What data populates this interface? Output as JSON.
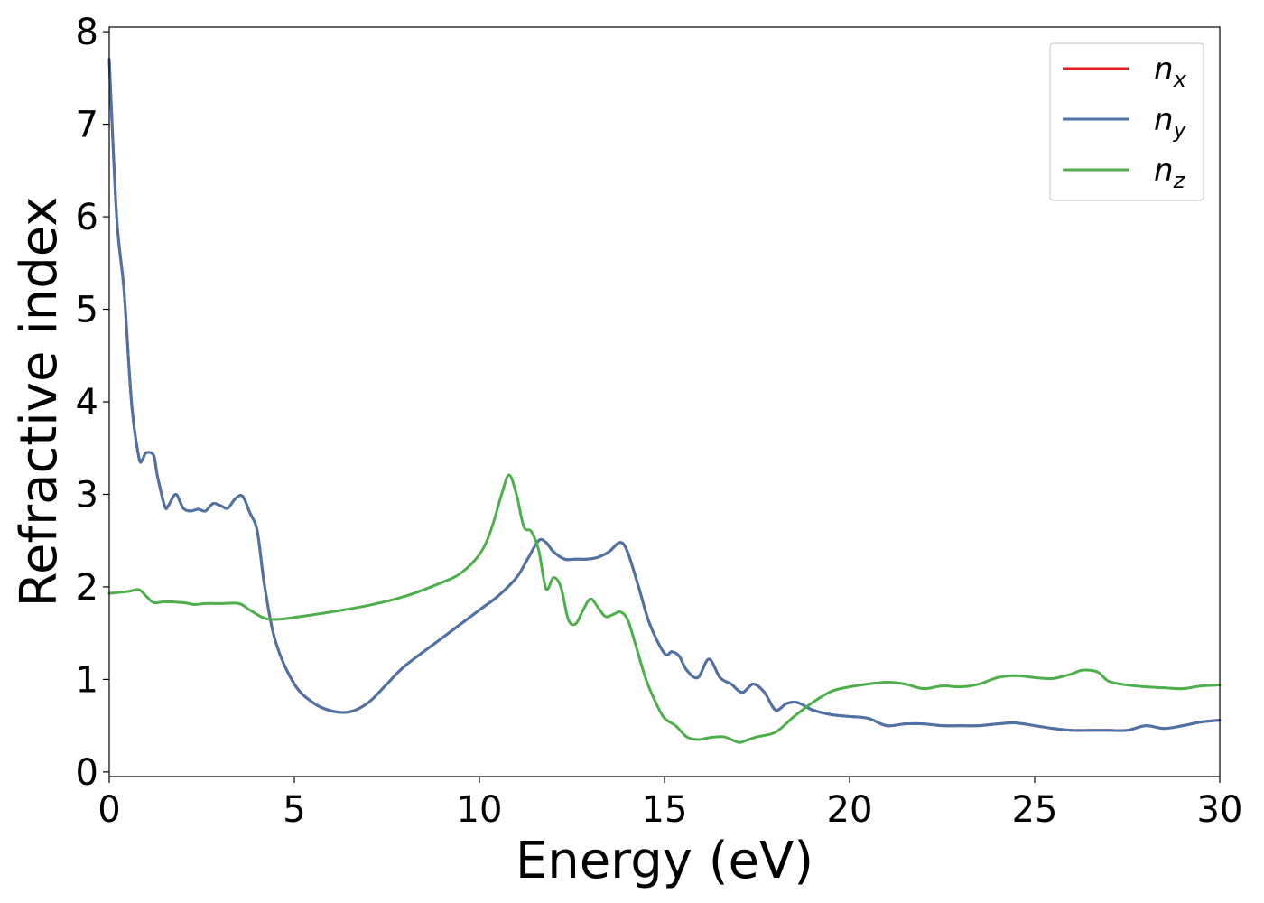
{
  "chart_data": {
    "type": "line",
    "xlabel": "Energy (eV)",
    "ylabel": "Refractive index",
    "xlim": [
      0,
      30
    ],
    "ylim": [
      -0.05,
      8.05
    ],
    "xticks": [
      0,
      5,
      10,
      15,
      20,
      25,
      30
    ],
    "yticks": [
      0,
      1,
      2,
      3,
      4,
      5,
      6,
      7,
      8
    ],
    "grid": false,
    "legend_position": "top-right",
    "series": [
      {
        "name": "n",
        "sub": "x",
        "color": "#e41a1c",
        "x": [
          0,
          0.2,
          0.4,
          0.6,
          0.8,
          0.9,
          1.0,
          1.2,
          1.3,
          1.5,
          1.6,
          1.8,
          2.0,
          2.2,
          2.4,
          2.6,
          2.8,
          3.0,
          3.2,
          3.4,
          3.6,
          3.8,
          4.0,
          4.2,
          4.5,
          5.0,
          5.5,
          6.0,
          6.5,
          7.0,
          7.5,
          8.0,
          9.0,
          10.0,
          10.5,
          11.0,
          11.3,
          11.6,
          11.8,
          12.0,
          12.3,
          12.6,
          12.9,
          13.2,
          13.5,
          13.8,
          14.0,
          14.3,
          14.6,
          15.0,
          15.2,
          15.4,
          15.6,
          15.9,
          16.2,
          16.5,
          16.8,
          17.1,
          17.4,
          17.7,
          18.0,
          18.3,
          18.6,
          19.0,
          19.5,
          20.0,
          20.5,
          21.0,
          21.5,
          22.0,
          22.5,
          23.0,
          23.5,
          24.0,
          24.5,
          25.0,
          25.5,
          26.0,
          26.5,
          27.0,
          27.5,
          28.0,
          28.5,
          29.0,
          29.5,
          30.0
        ],
        "y": [
          7.7,
          6.0,
          5.2,
          4.0,
          3.4,
          3.38,
          3.45,
          3.42,
          3.2,
          2.87,
          2.88,
          3.0,
          2.85,
          2.82,
          2.84,
          2.82,
          2.9,
          2.88,
          2.85,
          2.95,
          2.98,
          2.8,
          2.6,
          2.0,
          1.4,
          0.95,
          0.75,
          0.66,
          0.65,
          0.75,
          0.95,
          1.15,
          1.45,
          1.75,
          1.9,
          2.1,
          2.3,
          2.5,
          2.48,
          2.38,
          2.3,
          2.3,
          2.3,
          2.32,
          2.38,
          2.48,
          2.38,
          2.0,
          1.6,
          1.28,
          1.3,
          1.25,
          1.1,
          1.02,
          1.22,
          1.02,
          0.95,
          0.86,
          0.95,
          0.86,
          0.67,
          0.74,
          0.75,
          0.67,
          0.62,
          0.6,
          0.58,
          0.5,
          0.52,
          0.52,
          0.5,
          0.5,
          0.5,
          0.52,
          0.53,
          0.5,
          0.47,
          0.45,
          0.45,
          0.45,
          0.45,
          0.5,
          0.47,
          0.5,
          0.54,
          0.56
        ]
      },
      {
        "name": "n",
        "sub": "y",
        "color": "#4a74a8",
        "x": [
          0,
          0.2,
          0.4,
          0.6,
          0.8,
          0.9,
          1.0,
          1.2,
          1.3,
          1.5,
          1.6,
          1.8,
          2.0,
          2.2,
          2.4,
          2.6,
          2.8,
          3.0,
          3.2,
          3.4,
          3.6,
          3.8,
          4.0,
          4.2,
          4.5,
          5.0,
          5.5,
          6.0,
          6.5,
          7.0,
          7.5,
          8.0,
          9.0,
          10.0,
          10.5,
          11.0,
          11.3,
          11.6,
          11.8,
          12.0,
          12.3,
          12.6,
          12.9,
          13.2,
          13.5,
          13.8,
          14.0,
          14.3,
          14.6,
          15.0,
          15.2,
          15.4,
          15.6,
          15.9,
          16.2,
          16.5,
          16.8,
          17.1,
          17.4,
          17.7,
          18.0,
          18.3,
          18.6,
          19.0,
          19.5,
          20.0,
          20.5,
          21.0,
          21.5,
          22.0,
          22.5,
          23.0,
          23.5,
          24.0,
          24.5,
          25.0,
          25.5,
          26.0,
          26.5,
          27.0,
          27.5,
          28.0,
          28.5,
          29.0,
          29.5,
          30.0
        ],
        "y": [
          7.7,
          6.0,
          5.2,
          4.0,
          3.4,
          3.38,
          3.45,
          3.42,
          3.2,
          2.87,
          2.88,
          3.0,
          2.85,
          2.82,
          2.84,
          2.82,
          2.9,
          2.88,
          2.85,
          2.95,
          2.98,
          2.8,
          2.6,
          2.0,
          1.4,
          0.95,
          0.75,
          0.66,
          0.65,
          0.75,
          0.95,
          1.15,
          1.45,
          1.75,
          1.9,
          2.1,
          2.3,
          2.5,
          2.48,
          2.38,
          2.3,
          2.3,
          2.3,
          2.32,
          2.38,
          2.48,
          2.38,
          2.0,
          1.6,
          1.28,
          1.3,
          1.25,
          1.1,
          1.02,
          1.22,
          1.02,
          0.95,
          0.86,
          0.95,
          0.86,
          0.67,
          0.74,
          0.75,
          0.67,
          0.62,
          0.6,
          0.58,
          0.5,
          0.52,
          0.52,
          0.5,
          0.5,
          0.5,
          0.52,
          0.53,
          0.5,
          0.47,
          0.45,
          0.45,
          0.45,
          0.45,
          0.5,
          0.47,
          0.5,
          0.54,
          0.56
        ]
      },
      {
        "name": "n",
        "sub": "z",
        "color": "#4daf4a",
        "x": [
          0,
          0.5,
          0.8,
          1.0,
          1.2,
          1.5,
          2.0,
          2.3,
          2.6,
          3.0,
          3.5,
          3.8,
          4.2,
          4.6,
          5.0,
          6.0,
          7.0,
          8.0,
          9.0,
          9.5,
          10.0,
          10.3,
          10.6,
          10.8,
          11.0,
          11.2,
          11.4,
          11.6,
          11.8,
          12.0,
          12.2,
          12.4,
          12.6,
          12.8,
          13.0,
          13.2,
          13.4,
          13.6,
          13.8,
          14.0,
          14.2,
          14.5,
          14.8,
          15.0,
          15.3,
          15.6,
          15.9,
          16.2,
          16.6,
          17.0,
          17.2,
          17.5,
          18.0,
          18.5,
          19.0,
          19.5,
          20.0,
          20.5,
          21.0,
          21.5,
          22.0,
          22.5,
          23.0,
          23.5,
          24.0,
          24.5,
          25.0,
          25.5,
          26.0,
          26.3,
          26.7,
          27.0,
          27.5,
          28.0,
          28.5,
          29.0,
          29.5,
          30.0
        ],
        "y": [
          1.93,
          1.95,
          1.97,
          1.9,
          1.83,
          1.84,
          1.83,
          1.81,
          1.82,
          1.82,
          1.82,
          1.75,
          1.66,
          1.65,
          1.67,
          1.73,
          1.8,
          1.9,
          2.05,
          2.15,
          2.35,
          2.6,
          3.0,
          3.21,
          3.0,
          2.65,
          2.6,
          2.4,
          1.98,
          2.1,
          2.0,
          1.65,
          1.6,
          1.75,
          1.87,
          1.78,
          1.68,
          1.7,
          1.73,
          1.65,
          1.4,
          1.0,
          0.72,
          0.58,
          0.5,
          0.38,
          0.35,
          0.37,
          0.38,
          0.32,
          0.34,
          0.38,
          0.43,
          0.6,
          0.75,
          0.87,
          0.92,
          0.95,
          0.97,
          0.95,
          0.9,
          0.93,
          0.92,
          0.95,
          1.02,
          1.04,
          1.02,
          1.01,
          1.06,
          1.1,
          1.08,
          0.98,
          0.94,
          0.92,
          0.91,
          0.9,
          0.93,
          0.94
        ]
      }
    ]
  }
}
